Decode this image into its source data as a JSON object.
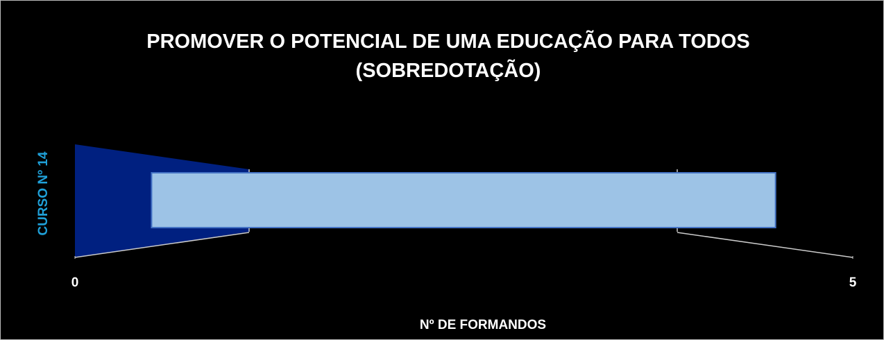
{
  "chart_data": {
    "type": "bar",
    "orientation": "horizontal",
    "title": "PROMOVER O POTENCIAL DE UMA EDUCAÇÃO PARA TODOS (SOBREDOTAÇÃO)",
    "xlabel": "Nº DE FORMANDOS",
    "ylabel": "CURSO Nº 14",
    "categories": [
      null
    ],
    "values": [
      5
    ],
    "color": "#9dc3e6",
    "xlim": [
      0,
      5
    ],
    "xticks": [
      0,
      5
    ]
  }
}
